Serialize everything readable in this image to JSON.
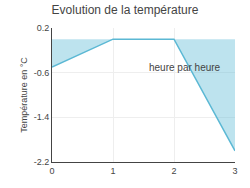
{
  "chart_data": {
    "type": "area",
    "title": "Evolution de la température",
    "ylabel": "Température en °C",
    "annotations": [
      "heure par heure"
    ],
    "x": [
      0,
      1,
      2,
      3
    ],
    "values": [
      -0.5,
      0.0,
      0.0,
      -2.0
    ],
    "color": "#5bb8d4",
    "xlim": [
      0,
      3
    ],
    "ylim": [
      -2.2,
      0.2
    ],
    "xticks": [
      0,
      1,
      2,
      3
    ],
    "yticks": [
      0.2,
      -0.6,
      -1.4,
      -2.2
    ],
    "grid": true
  }
}
